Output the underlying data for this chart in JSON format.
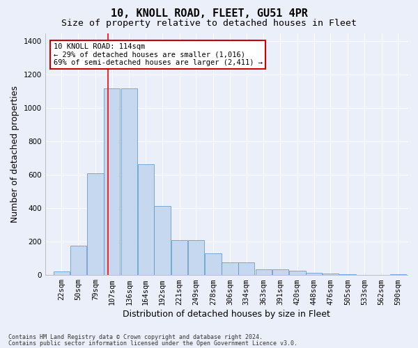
{
  "title1": "10, KNOLL ROAD, FLEET, GU51 4PR",
  "title2": "Size of property relative to detached houses in Fleet",
  "xlabel": "Distribution of detached houses by size in Fleet",
  "ylabel": "Number of detached properties",
  "footer1": "Contains HM Land Registry data © Crown copyright and database right 2024.",
  "footer2": "Contains public sector information licensed under the Open Government Licence v3.0.",
  "annotation_line1": "10 KNOLL ROAD: 114sqm",
  "annotation_line2": "← 29% of detached houses are smaller (1,016)",
  "annotation_line3": "69% of semi-detached houses are larger (2,411) →",
  "bar_color": "#c5d8f0",
  "bar_edge_color": "#5b8ec4",
  "red_line_x": 114,
  "categories": [
    "22sqm",
    "50sqm",
    "79sqm",
    "107sqm",
    "136sqm",
    "164sqm",
    "192sqm",
    "221sqm",
    "249sqm",
    "278sqm",
    "306sqm",
    "334sqm",
    "363sqm",
    "391sqm",
    "420sqm",
    "448sqm",
    "476sqm",
    "505sqm",
    "533sqm",
    "562sqm",
    "590sqm"
  ],
  "bin_starts": [
    22,
    50,
    79,
    107,
    136,
    164,
    192,
    221,
    249,
    278,
    306,
    334,
    363,
    391,
    420,
    448,
    476,
    505,
    533,
    562,
    590
  ],
  "bin_width": 28,
  "values": [
    20,
    175,
    610,
    1120,
    1120,
    665,
    415,
    210,
    210,
    130,
    75,
    75,
    35,
    35,
    25,
    15,
    10,
    5,
    0,
    0,
    5
  ],
  "ylim": [
    0,
    1450
  ],
  "yticks": [
    0,
    200,
    400,
    600,
    800,
    1000,
    1200,
    1400
  ],
  "xlim_left": 8,
  "xlim_right": 620,
  "background_color": "#eaeff9",
  "grid_color": "#d8dce8",
  "title_fontsize": 11,
  "subtitle_fontsize": 9.5,
  "axis_label_fontsize": 9,
  "tick_fontsize": 7.5,
  "annotation_fontsize": 7.5,
  "footer_fontsize": 6,
  "annotation_box_facecolor": "#ffffff",
  "annotation_box_edgecolor": "#cc0000"
}
